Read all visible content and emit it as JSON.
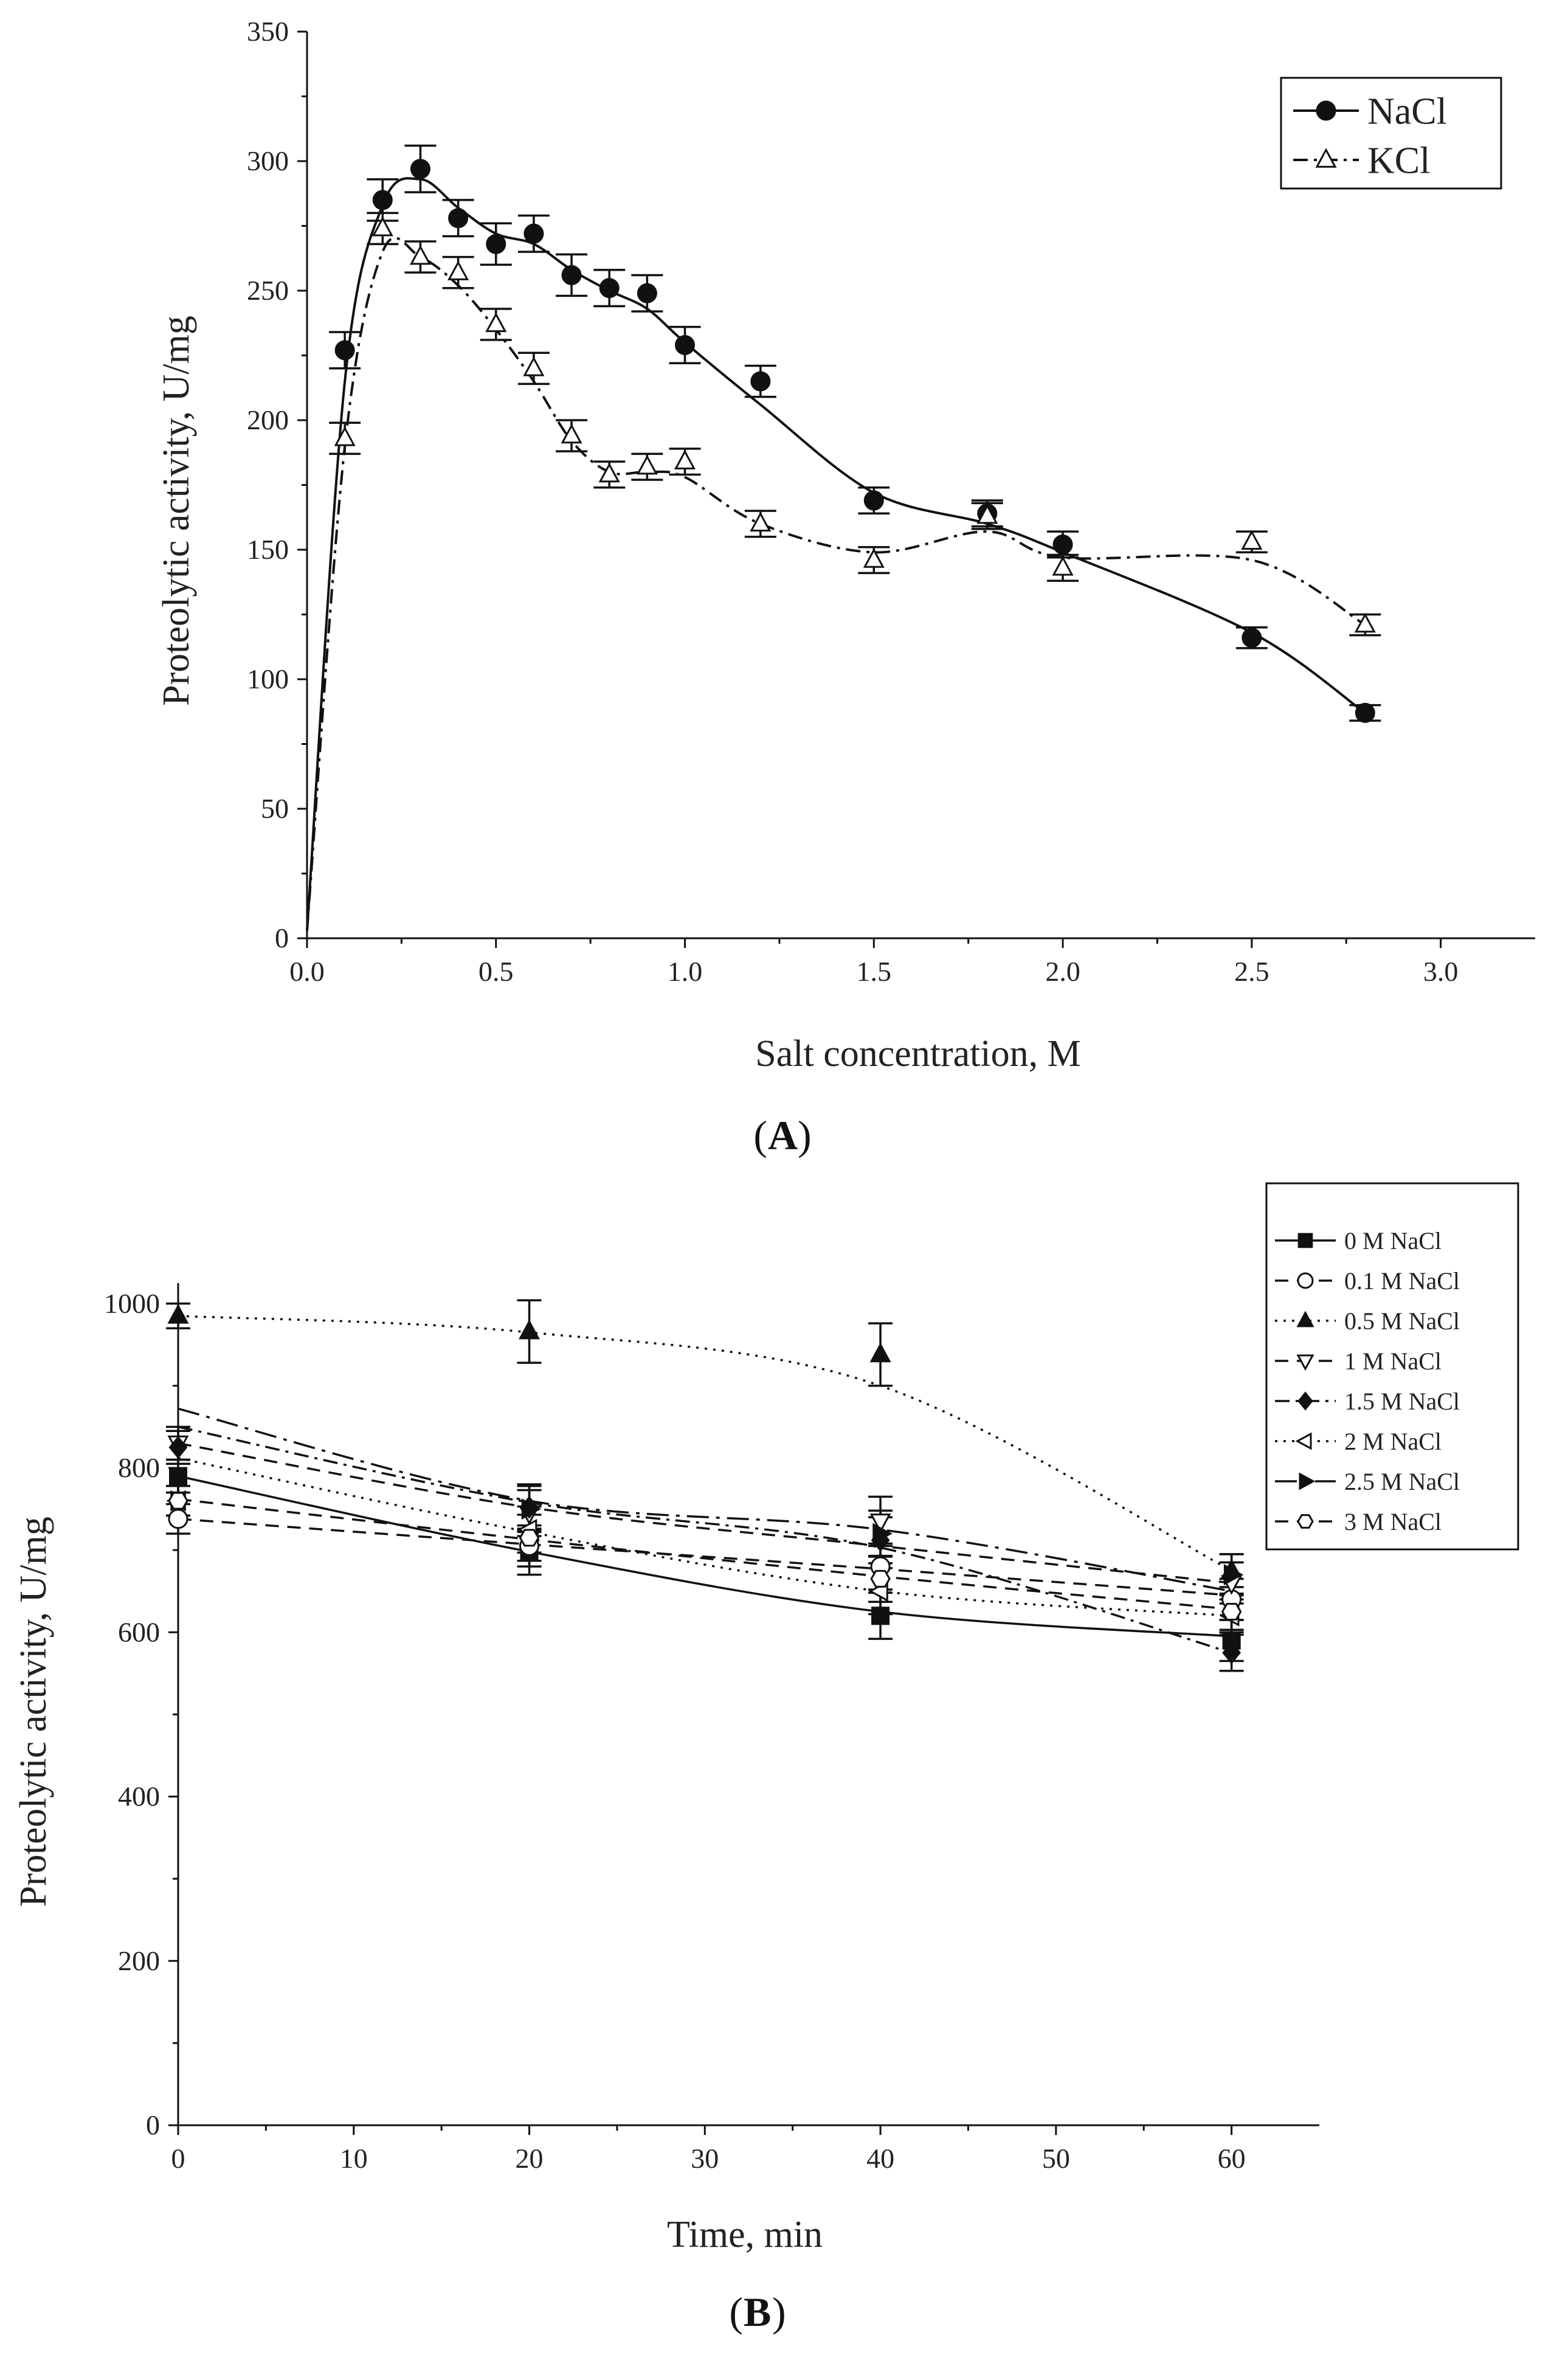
{
  "chart_data": [
    {
      "id": "A",
      "type": "line",
      "panel_label": "A",
      "xlabel": "Salt concentration, M",
      "ylabel": "Proteolytic activity, U/mg",
      "xlim": [
        0,
        3.25
      ],
      "ylim": [
        0,
        350
      ],
      "xticks": [
        0.0,
        0.5,
        1.0,
        1.5,
        2.0,
        2.5,
        3.0
      ],
      "xtick_labels": [
        "0.0",
        "0.5",
        "1.0",
        "1.5",
        "2.0",
        "2.5",
        "3.0"
      ],
      "yticks": [
        0,
        50,
        100,
        150,
        200,
        250,
        300,
        350
      ],
      "ytick_labels": [
        "0",
        "50",
        "100",
        "150",
        "200",
        "250",
        "300",
        "350"
      ],
      "legend_position": "top-right",
      "series": [
        {
          "name": "NaCl",
          "marker": "filled-circle",
          "dash": "solid",
          "x": [
            0.1,
            0.2,
            0.3,
            0.4,
            0.5,
            0.6,
            0.7,
            0.8,
            0.9,
            1.0,
            1.2,
            1.5,
            1.8,
            2.0,
            2.5,
            2.8
          ],
          "y": [
            227,
            285,
            297,
            278,
            268,
            272,
            256,
            251,
            249,
            229,
            215,
            169,
            164,
            152,
            116,
            87
          ],
          "err": [
            7,
            8,
            9,
            7,
            8,
            7,
            8,
            7,
            7,
            7,
            6,
            5,
            5,
            5,
            4,
            3
          ],
          "curve_x": [
            0,
            0.1,
            0.2,
            0.3,
            0.4,
            0.5,
            0.6,
            0.7,
            0.8,
            0.9,
            1.0,
            1.2,
            1.5,
            1.8,
            2.0,
            2.5,
            2.8
          ],
          "curve_y": [
            3,
            215,
            283,
            293,
            282,
            272,
            268,
            258,
            250,
            243,
            230,
            206,
            172,
            160,
            149,
            118,
            87
          ]
        },
        {
          "name": "KCl",
          "marker": "open-triangle",
          "dash": "dash-dot",
          "x": [
            0.1,
            0.2,
            0.3,
            0.4,
            0.5,
            0.6,
            0.7,
            0.8,
            0.9,
            1.0,
            1.2,
            1.5,
            1.8,
            2.0,
            2.5,
            2.8
          ],
          "y": [
            193,
            274,
            263,
            257,
            237,
            220,
            194,
            179,
            182,
            184,
            160,
            146,
            163,
            143,
            153,
            121
          ],
          "err": [
            6,
            6,
            6,
            6,
            6,
            6,
            6,
            5,
            5,
            5,
            5,
            5,
            5,
            5,
            4,
            4
          ],
          "curve_x": [
            0,
            0.1,
            0.2,
            0.3,
            0.4,
            0.5,
            0.6,
            0.7,
            0.8,
            0.9,
            1.0,
            1.2,
            1.5,
            1.8,
            2.0,
            2.5,
            2.8
          ],
          "curve_y": [
            3,
            190,
            265,
            263,
            252,
            235,
            215,
            192,
            180,
            180,
            178,
            160,
            149,
            157,
            147,
            146,
            121
          ]
        }
      ]
    },
    {
      "id": "B",
      "type": "line",
      "panel_label": "B",
      "xlabel": "Time, min",
      "ylabel": "Proteolytic activity, U/mg",
      "xlim": [
        0,
        65
      ],
      "ylim": [
        0,
        1025
      ],
      "xticks": [
        0,
        10,
        20,
        30,
        40,
        50,
        60
      ],
      "xtick_labels": [
        "0",
        "10",
        "20",
        "30",
        "40",
        "50",
        "60"
      ],
      "yticks": [
        0,
        200,
        400,
        600,
        800,
        1000
      ],
      "ytick_labels": [
        "0",
        "200",
        "400",
        "600",
        "800",
        "1000"
      ],
      "legend_position": "top-right",
      "series": [
        {
          "name": "0 M NaCl",
          "marker": "filled-square",
          "dash": "solid",
          "x": [
            0,
            20,
            40,
            60
          ],
          "y": [
            790,
            698,
            620,
            590
          ],
          "err": [
            20,
            28,
            28,
            25
          ],
          "curve_x": [
            0,
            20,
            40,
            60
          ],
          "curve_y": [
            790,
            698,
            625,
            595
          ]
        },
        {
          "name": "0.1 M NaCl",
          "marker": "open-circle",
          "dash": "dash",
          "x": [
            0,
            20,
            40,
            60
          ],
          "y": [
            738,
            705,
            680,
            640
          ],
          "err": [
            18,
            25,
            28,
            25
          ],
          "curve_x": [
            0,
            20,
            40,
            60
          ],
          "curve_y": [
            738,
            707,
            677,
            645
          ]
        },
        {
          "name": "0.5 M NaCl",
          "marker": "filled-triangle",
          "dash": "dot",
          "x": [
            0,
            20,
            40,
            60
          ],
          "y": [
            985,
            966,
            938,
            675
          ],
          "err": [
            15,
            38,
            38,
            20
          ],
          "curve_x": [
            0,
            20,
            40,
            60
          ],
          "curve_y": [
            985,
            965,
            900,
            675
          ]
        },
        {
          "name": "1 M NaCl",
          "marker": "open-triangle-down",
          "dash": "dash",
          "x": [
            0,
            20,
            40,
            60
          ],
          "y": [
            830,
            745,
            735,
            660
          ],
          "err": [
            20,
            28,
            30,
            25
          ],
          "curve_x": [
            0,
            20,
            40,
            60
          ],
          "curve_y": [
            830,
            752,
            705,
            660
          ]
        },
        {
          "name": "1.5 M NaCl",
          "marker": "filled-diamond",
          "dash": "dash-dot",
          "x": [
            0,
            20,
            40,
            60
          ],
          "y": [
            825,
            752,
            712,
            575
          ],
          "err": [
            20,
            28,
            28,
            22
          ],
          "curve_x": [
            0,
            20,
            40,
            60
          ],
          "curve_y": [
            850,
            758,
            703,
            575
          ]
        },
        {
          "name": "2 M NaCl",
          "marker": "open-triangle-left",
          "dash": "dot",
          "x": [
            0,
            20,
            40,
            60
          ],
          "y": [
            760,
            725,
            650,
            620
          ],
          "err": [
            18,
            28,
            28,
            20
          ],
          "curve_x": [
            0,
            20,
            40,
            60
          ],
          "curve_y": [
            812,
            722,
            650,
            620
          ]
        },
        {
          "name": "2.5 M NaCl",
          "marker": "filled-triangle-right",
          "dash": "long-dash-dot",
          "x": [
            0,
            20,
            40,
            60
          ],
          "y": [
            760,
            750,
            720,
            670
          ],
          "err": [
            18,
            28,
            28,
            25
          ],
          "curve_x": [
            0,
            20,
            40,
            60
          ],
          "curve_y": [
            872,
            760,
            725,
            650
          ]
        },
        {
          "name": "3 M NaCl",
          "marker": "open-hexagon",
          "dash": "dash",
          "x": [
            0,
            20,
            40,
            60
          ],
          "y": [
            760,
            715,
            665,
            625
          ],
          "err": [
            18,
            28,
            28,
            22
          ],
          "curve_x": [
            0,
            20,
            40,
            60
          ],
          "curve_y": [
            762,
            713,
            668,
            628
          ]
        }
      ]
    }
  ],
  "colors": {
    "ink": "#111111",
    "background": "#ffffff"
  }
}
